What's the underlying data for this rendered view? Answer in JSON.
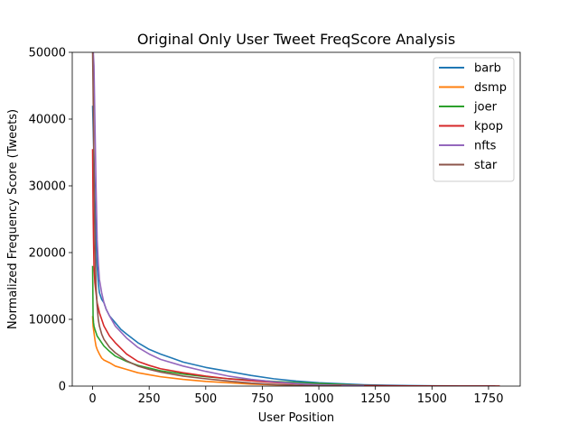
{
  "chart_data": {
    "type": "line",
    "title": "Original Only User Tweet FreqScore Analysis",
    "xlabel": "User Position",
    "ylabel": "Normalized Frequency Score (Tweets)",
    "xlim": [
      -90,
      1890
    ],
    "ylim": [
      0,
      50000
    ],
    "xticks": [
      0,
      250,
      500,
      750,
      1000,
      1250,
      1500,
      1750
    ],
    "yticks": [
      0,
      10000,
      20000,
      30000,
      40000,
      50000
    ],
    "grid": false,
    "legend": "top-right",
    "series": [
      {
        "name": "barb",
        "color": "#1f77b4",
        "x": [
          0,
          3,
          6,
          10,
          15,
          20,
          25,
          30,
          40,
          50,
          60,
          75,
          100,
          125,
          150,
          200,
          250,
          300,
          350,
          400,
          500,
          600,
          700,
          800,
          900,
          1000,
          1100,
          1200,
          1300,
          1400,
          1500,
          1600,
          1700,
          1780
        ],
        "y": [
          42000,
          38000,
          34000,
          28000,
          22000,
          18000,
          15500,
          14000,
          13000,
          12500,
          11500,
          10500,
          9500,
          8500,
          7800,
          6500,
          5500,
          4800,
          4200,
          3600,
          2800,
          2200,
          1600,
          1100,
          750,
          500,
          350,
          200,
          120,
          70,
          40,
          20,
          10,
          5
        ]
      },
      {
        "name": "dsmp",
        "color": "#ff7f0e",
        "x": [
          0,
          2,
          4,
          6,
          10,
          15,
          20,
          30,
          40,
          50,
          75,
          100,
          150,
          200,
          250,
          300,
          400,
          500,
          600,
          700,
          800,
          900,
          1000,
          1100,
          1200
        ],
        "y": [
          10500,
          9000,
          8500,
          8000,
          7000,
          6000,
          5500,
          4800,
          4200,
          3900,
          3500,
          3000,
          2500,
          2000,
          1700,
          1400,
          1000,
          700,
          500,
          300,
          200,
          100,
          60,
          30,
          10
        ]
      },
      {
        "name": "joer",
        "color": "#2ca02c",
        "x": [
          0,
          2,
          4,
          6,
          10,
          15,
          20,
          30,
          40,
          50,
          75,
          100,
          150,
          200,
          250,
          300,
          400,
          500,
          600,
          700,
          800,
          900,
          1000,
          1100,
          1200,
          1300
        ],
        "y": [
          18000,
          10500,
          9500,
          9000,
          8500,
          8000,
          7500,
          7000,
          6500,
          6000,
          5200,
          4500,
          3700,
          3100,
          2700,
          2300,
          1800,
          1400,
          1100,
          900,
          700,
          550,
          400,
          250,
          100,
          20
        ]
      },
      {
        "name": "kpop",
        "color": "#d62728",
        "x": [
          0,
          2,
          4,
          6,
          10,
          15,
          20,
          30,
          40,
          50,
          75,
          100,
          150,
          200,
          250,
          300,
          400,
          500,
          600,
          700,
          800,
          900,
          1000,
          1200,
          1400,
          1600,
          1800
        ],
        "y": [
          35500,
          27000,
          22000,
          18000,
          15500,
          14000,
          12500,
          11000,
          10000,
          9000,
          7500,
          6500,
          4800,
          3700,
          3100,
          2600,
          2000,
          1500,
          1100,
          800,
          550,
          350,
          200,
          80,
          30,
          10,
          5
        ]
      },
      {
        "name": "nfts",
        "color": "#9467bd",
        "x": [
          0,
          3,
          6,
          10,
          15,
          20,
          25,
          30,
          40,
          50,
          60,
          75,
          100,
          150,
          200,
          250,
          300,
          400,
          500,
          600,
          700,
          800,
          900,
          1000,
          1100,
          1200
        ],
        "y": [
          50000,
          50000,
          48000,
          40000,
          30000,
          22000,
          18500,
          16000,
          14000,
          12500,
          11500,
          10500,
          9000,
          7200,
          5800,
          4800,
          4000,
          3000,
          2200,
          1500,
          1000,
          650,
          400,
          200,
          80,
          20
        ]
      },
      {
        "name": "star",
        "color": "#8c564b",
        "x": [
          0,
          3,
          6,
          10,
          15,
          20,
          25,
          30,
          40,
          50,
          75,
          100,
          150,
          200,
          250,
          300,
          400,
          500,
          600,
          700,
          800,
          900,
          1000,
          1100
        ],
        "y": [
          50000,
          42000,
          32000,
          22000,
          15000,
          12000,
          10000,
          9000,
          7800,
          7000,
          5800,
          5000,
          3800,
          3000,
          2500,
          2100,
          1500,
          1100,
          750,
          450,
          250,
          120,
          50,
          10
        ]
      }
    ]
  }
}
